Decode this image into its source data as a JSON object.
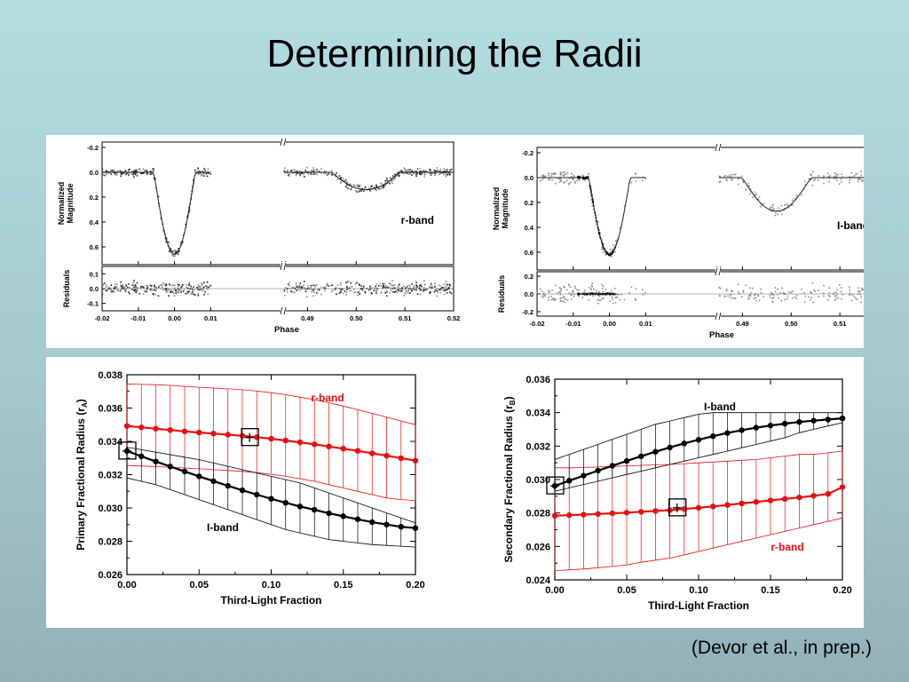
{
  "slide": {
    "title": "Determining the Radii",
    "citation": "(Devor et al., in prep.)"
  },
  "chart_data": [
    {
      "id": "light-curve-r-band",
      "type": "scatter",
      "band_label": "r-band",
      "ylabel": "Normalized Magnitude",
      "residual_ylabel": "Residuals",
      "xlabel": "Phase",
      "x_broken_axis": true,
      "x_ticks": [
        "-0.02",
        "-0.01",
        "0.00",
        "0.01",
        "0.49",
        "0.50",
        "0.51",
        "0.52"
      ],
      "ylim": [
        -0.2,
        0.7
      ],
      "y_ticks": [
        "-0.2",
        "0.0",
        "0.2",
        "0.4",
        "0.6"
      ],
      "y_inverted": true,
      "residual_ylim": [
        -0.15,
        0.15
      ],
      "residual_ticks": [
        "0.1",
        "0.0",
        "-0.1"
      ],
      "primary_eclipse": {
        "center": 0.0,
        "depth": 0.66
      },
      "secondary_eclipse": {
        "center": 0.502,
        "depth": 0.14
      },
      "observations": "scattered photometry points around a fitted model curve"
    },
    {
      "id": "light-curve-i-band",
      "type": "scatter",
      "band_label": "I-band",
      "ylabel": "Normalized Magnitude",
      "residual_ylabel": "Residuals",
      "xlabel": "Phase",
      "x_broken_axis": true,
      "x_ticks": [
        "-0.02",
        "-0.01",
        "0.00",
        "0.01",
        "0.49",
        "0.50",
        "0.51",
        "0.52"
      ],
      "ylim": [
        -0.2,
        0.7
      ],
      "y_ticks": [
        "-0.2",
        "0.0",
        "0.2",
        "0.4",
        "0.6"
      ],
      "y_inverted": true,
      "residual_ylim": [
        -0.25,
        0.25
      ],
      "residual_ticks": [
        "0.2",
        "0.0",
        "-0.2"
      ],
      "primary_eclipse": {
        "center": 0.0,
        "depth": 0.62
      },
      "secondary_eclipse": {
        "center": 0.497,
        "depth": 0.27
      },
      "observations": "scattered photometry points around a fitted model curve"
    },
    {
      "id": "primary-radius",
      "type": "line",
      "xlabel": "Third-Light Fraction",
      "ylabel": "Primary Fractional Radius (r",
      "ylabel_sub": "A",
      "ylabel_close": ")",
      "xlim": [
        0,
        0.2
      ],
      "ylim": [
        0.026,
        0.038
      ],
      "x_ticks": [
        "0.00",
        "0.05",
        "0.10",
        "0.15",
        "0.20"
      ],
      "y_ticks": [
        "0.026",
        "0.028",
        "0.030",
        "0.032",
        "0.034",
        "0.036",
        "0.038"
      ],
      "x": [
        0,
        0.01,
        0.02,
        0.03,
        0.04,
        0.05,
        0.06,
        0.07,
        0.08,
        0.09,
        0.1,
        0.11,
        0.12,
        0.13,
        0.14,
        0.15,
        0.16,
        0.17,
        0.18,
        0.19,
        0.2
      ],
      "series": [
        {
          "name": "r-band",
          "color": "#e8100f",
          "values": [
            0.03492,
            0.03484,
            0.03476,
            0.03468,
            0.0346,
            0.03453,
            0.03447,
            0.0344,
            0.03433,
            0.03425,
            0.03416,
            0.03405,
            0.03394,
            0.03382,
            0.03369,
            0.03356,
            0.03343,
            0.03328,
            0.03314,
            0.03299,
            0.03284
          ],
          "upper": [
            0.03745,
            0.03742,
            0.0374,
            0.03736,
            0.0373,
            0.03725,
            0.0372,
            0.03715,
            0.0371,
            0.03702,
            0.03692,
            0.0368,
            0.03665,
            0.0365,
            0.03632,
            0.03612,
            0.0359,
            0.03568,
            0.03545,
            0.03522,
            0.035
          ],
          "lower": [
            0.03255,
            0.03252,
            0.03248,
            0.03245,
            0.0324,
            0.03235,
            0.0323,
            0.03225,
            0.0322,
            0.03212,
            0.03202,
            0.0319,
            0.03175,
            0.0316,
            0.0314,
            0.0312,
            0.031,
            0.0308,
            0.0306,
            0.0305,
            0.03045
          ]
        },
        {
          "name": "I-band",
          "color": "#000000",
          "values": [
            0.03342,
            0.0331,
            0.03279,
            0.03249,
            0.03219,
            0.0319,
            0.03161,
            0.03133,
            0.03106,
            0.0308,
            0.03055,
            0.03031,
            0.03009,
            0.02989,
            0.02968,
            0.0295,
            0.02932,
            0.02915,
            0.029,
            0.02887,
            0.02879
          ],
          "upper": [
            0.03365,
            0.0335,
            0.03335,
            0.0332,
            0.03305,
            0.0329,
            0.0327,
            0.0325,
            0.0323,
            0.0321,
            0.0319,
            0.0317,
            0.0315,
            0.0312,
            0.0309,
            0.0306,
            0.0303,
            0.03,
            0.0297,
            0.0294,
            0.0291
          ],
          "lower": [
            0.0318,
            0.0316,
            0.0314,
            0.0311,
            0.0308,
            0.0305,
            0.0302,
            0.0299,
            0.0296,
            0.0293,
            0.029,
            0.0287,
            0.0285,
            0.0283,
            0.0281,
            0.028,
            0.0279,
            0.0278,
            0.02775,
            0.0277,
            0.02765
          ]
        }
      ],
      "annotations": [
        {
          "text": "r-band",
          "color": "#e8100f"
        },
        {
          "text": "I-band",
          "color": "#000000"
        }
      ],
      "markers": [
        {
          "series": "I-band",
          "x": 0.0,
          "y": 0.03342
        },
        {
          "series": "r-band",
          "x": 0.085,
          "y": 0.03423
        }
      ]
    },
    {
      "id": "secondary-radius",
      "type": "line",
      "xlabel": "Third-Light Fraction",
      "ylabel": "Secondary Fractional Radius (r",
      "ylabel_sub": "B",
      "ylabel_close": ")",
      "xlim": [
        0,
        0.2
      ],
      "ylim": [
        0.024,
        0.036
      ],
      "x_ticks": [
        "0.00",
        "0.05",
        "0.10",
        "0.15",
        "0.20"
      ],
      "y_ticks": [
        "0.024",
        "0.026",
        "0.028",
        "0.030",
        "0.032",
        "0.034",
        "0.036"
      ],
      "x": [
        0,
        0.01,
        0.02,
        0.03,
        0.04,
        0.05,
        0.06,
        0.07,
        0.08,
        0.09,
        0.1,
        0.11,
        0.12,
        0.13,
        0.14,
        0.15,
        0.16,
        0.17,
        0.18,
        0.19,
        0.2
      ],
      "series": [
        {
          "name": "r-band",
          "color": "#e8100f",
          "values": [
            0.02784,
            0.02787,
            0.0279,
            0.02794,
            0.02798,
            0.02802,
            0.02807,
            0.02812,
            0.02817,
            0.02824,
            0.02831,
            0.02839,
            0.02848,
            0.02857,
            0.02866,
            0.02875,
            0.02884,
            0.02893,
            0.02903,
            0.02914,
            0.02955
          ],
          "upper": [
            0.0307,
            0.0307,
            0.03072,
            0.03075,
            0.03078,
            0.03082,
            0.03085,
            0.03088,
            0.0309,
            0.03095,
            0.031,
            0.03105,
            0.0311,
            0.03115,
            0.0312,
            0.0313,
            0.0314,
            0.0315,
            0.0315,
            0.0316,
            0.0317
          ],
          "lower": [
            0.02455,
            0.0246,
            0.02465,
            0.02473,
            0.0248,
            0.0249,
            0.02505,
            0.02518,
            0.0253,
            0.0255,
            0.0257,
            0.0259,
            0.0261,
            0.0263,
            0.0265,
            0.0267,
            0.0269,
            0.0271,
            0.0273,
            0.0275,
            0.0277
          ]
        },
        {
          "name": "I-band",
          "color": "#000000",
          "values": [
            0.02962,
            0.02993,
            0.03023,
            0.03053,
            0.03082,
            0.03111,
            0.03139,
            0.03166,
            0.03192,
            0.03216,
            0.03238,
            0.03259,
            0.03278,
            0.03295,
            0.0331,
            0.03323,
            0.03334,
            0.03344,
            0.03352,
            0.03359,
            0.03366
          ],
          "upper": [
            0.0312,
            0.0315,
            0.0318,
            0.0321,
            0.0324,
            0.0327,
            0.033,
            0.0333,
            0.0335,
            0.0337,
            0.0339,
            0.034,
            0.034,
            0.034,
            0.034,
            0.034,
            0.034,
            0.034,
            0.034,
            0.034,
            0.034
          ],
          "lower": [
            0.0293,
            0.0295,
            0.0297,
            0.0299,
            0.0301,
            0.0303,
            0.0305,
            0.0307,
            0.0309,
            0.0311,
            0.0313,
            0.0315,
            0.0317,
            0.0319,
            0.0321,
            0.0323,
            0.0325,
            0.0328,
            0.033,
            0.0332,
            0.0334
          ]
        }
      ],
      "annotations": [
        {
          "text": "I-band",
          "color": "#000000"
        },
        {
          "text": "r-band",
          "color": "#e8100f"
        }
      ],
      "markers": [
        {
          "series": "I-band",
          "x": 0.0,
          "y": 0.02962
        },
        {
          "series": "r-band",
          "x": 0.085,
          "y": 0.02831
        }
      ]
    }
  ]
}
